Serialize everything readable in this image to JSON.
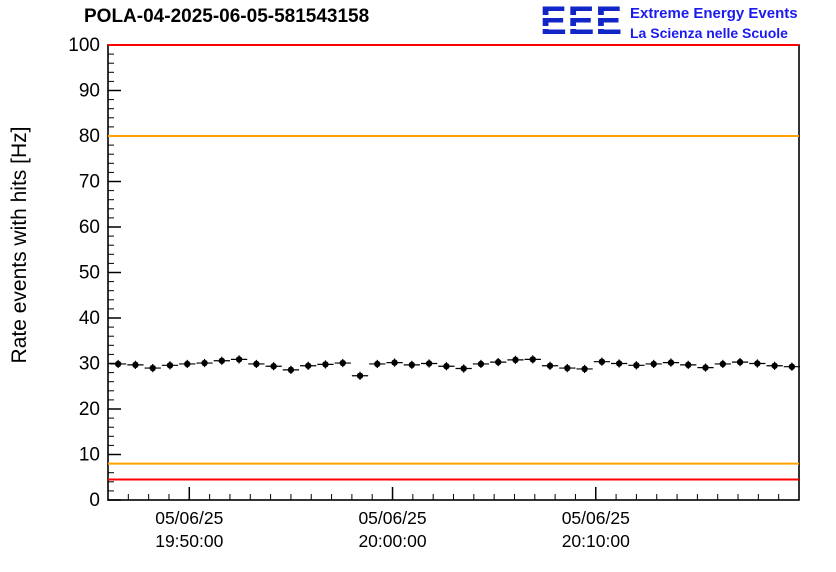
{
  "header": {
    "title": "POLA-04-2025-06-05-581543158"
  },
  "logo": {
    "letters": "EEE",
    "line1": "Extreme Energy Events",
    "line2": "La Scienza nelle Scuole",
    "color": "#1226c8"
  },
  "chart_data": {
    "type": "scatter",
    "title": "POLA-04-2025-06-05-581543158",
    "xlabel": "",
    "ylabel": "Rate events with hits [Hz]",
    "ylim": [
      0,
      100
    ],
    "y_major_tick_step": 10,
    "y_minor_tick_step": 2,
    "x_range": [
      "05/06/25 19:46:00",
      "05/06/25 20:20:00"
    ],
    "x_domain_sec": [
      0,
      2040
    ],
    "x_minor_tick_sec": 60,
    "x_ticks": [
      {
        "sec": 240,
        "date": "05/06/25",
        "time": "19:50:00"
      },
      {
        "sec": 840,
        "date": "05/06/25",
        "time": "20:00:00"
      },
      {
        "sec": 1440,
        "date": "05/06/25",
        "time": "20:10:00"
      }
    ],
    "thresholds": [
      {
        "value": 100,
        "color": "#ff0000"
      },
      {
        "value": 80,
        "color": "#ffa200"
      },
      {
        "value": 8,
        "color": "#ffa200"
      },
      {
        "value": 4.5,
        "color": "#ff0000"
      }
    ],
    "marker": {
      "color": "#000000",
      "radius": 3.2,
      "y_err": 0.9,
      "x_err_sec": 24
    },
    "x_offsets_sec": [
      30,
      81,
      132,
      183,
      234,
      285,
      336,
      387,
      438,
      489,
      540,
      591,
      642,
      693,
      744,
      795,
      846,
      897,
      948,
      999,
      1050,
      1101,
      1152,
      1203,
      1254,
      1305,
      1356,
      1407,
      1458,
      1509,
      1560,
      1611,
      1662,
      1713,
      1764,
      1815,
      1866,
      1917,
      1968,
      2019
    ],
    "values": [
      29.9,
      29.7,
      29.0,
      29.6,
      29.9,
      30.1,
      30.6,
      30.9,
      29.9,
      29.4,
      28.6,
      29.5,
      29.8,
      30.1,
      27.3,
      29.9,
      30.2,
      29.7,
      30.0,
      29.4,
      28.9,
      29.9,
      30.3,
      30.8,
      30.9,
      29.5,
      29.0,
      28.8,
      30.4,
      30.0,
      29.6,
      29.9,
      30.2,
      29.7,
      29.1,
      29.9,
      30.3,
      30.0,
      29.5,
      29.3
    ],
    "grid": false,
    "legend": null
  }
}
